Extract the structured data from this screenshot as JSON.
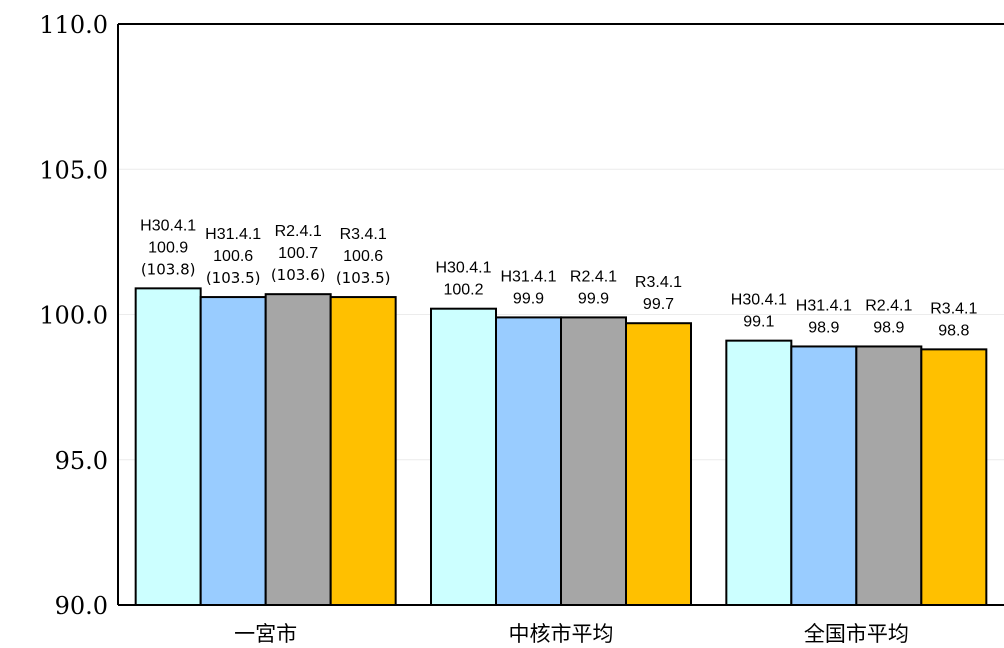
{
  "chart_data": {
    "type": "bar",
    "title": "",
    "xlabel": "",
    "ylabel": "",
    "ylim": [
      90,
      110
    ],
    "yticks": [
      "90.0",
      "95.0",
      "100.0",
      "105.0",
      "110.0"
    ],
    "grid": true,
    "legend": "none",
    "categories": [
      "一宮市",
      "中核市平均",
      "全国市平均"
    ],
    "series": [
      {
        "name": "H30.4.1",
        "color": "#CCFFFF",
        "values": [
          100.9,
          100.2,
          99.1
        ],
        "labels": [
          "100.9",
          "100.2",
          "99.1"
        ],
        "secondary": [
          "(103.8)",
          "",
          ""
        ]
      },
      {
        "name": "H31.4.1",
        "color": "#99CCFF",
        "values": [
          100.6,
          99.9,
          98.9
        ],
        "labels": [
          "100.6",
          "99.9",
          "98.9"
        ],
        "secondary": [
          "(103.5)",
          "",
          ""
        ]
      },
      {
        "name": "R2.4.1",
        "color": "#A6A6A6",
        "values": [
          100.7,
          99.9,
          98.9
        ],
        "labels": [
          "100.7",
          "99.9",
          "98.9"
        ],
        "secondary": [
          "(103.6)",
          "",
          ""
        ]
      },
      {
        "name": "R3.4.1",
        "color": "#FFC000",
        "values": [
          100.6,
          99.7,
          98.8
        ],
        "labels": [
          "100.6",
          "99.7",
          "98.8"
        ],
        "secondary": [
          "(103.5)",
          "",
          ""
        ]
      }
    ]
  }
}
